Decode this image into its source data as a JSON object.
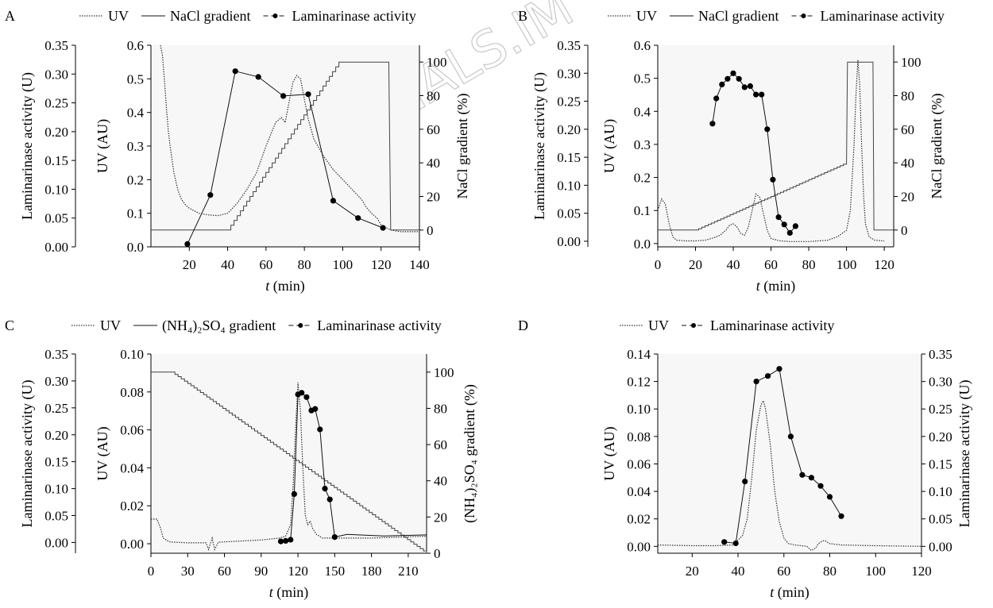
{
  "watermark": "JOURNALS.IM",
  "colors": {
    "ink": "#000000",
    "plot_background": "#f7f7f7",
    "watermark": "#c8c8c8"
  },
  "chart_data": [
    {
      "panel": "A",
      "type": "line",
      "legend": {
        "placement": "top",
        "entries": [
          "UV",
          "NaCl gradient",
          "Laminarinase activity"
        ]
      },
      "xlabel_var": "t",
      "xlabel_unit": "(min)",
      "xlim": [
        0,
        140
      ],
      "xticks": [
        "20",
        "40",
        "60",
        "80",
        "100",
        "120",
        "140"
      ],
      "left2": {
        "title": "Laminarinase activity (U)",
        "range": [
          0,
          0.35
        ],
        "ticks": [
          "0.00",
          "0.05",
          "0.10",
          "0.15",
          "0.20",
          "0.25",
          "0.30",
          "0.35"
        ]
      },
      "left1": {
        "title": "UV (AU)",
        "range": [
          0,
          0.6
        ],
        "ticks": [
          "0.0",
          "0.1",
          "0.2",
          "0.3",
          "0.4",
          "0.5",
          "0.6"
        ]
      },
      "right": {
        "title": "NaCl gradient (%)",
        "range": [
          -10,
          110
        ],
        "ticks": [
          "0",
          "20",
          "40",
          "60",
          "80",
          "100"
        ]
      },
      "uv": {
        "x": [
          5,
          6,
          7,
          8,
          9,
          10,
          12,
          14,
          16,
          18,
          20,
          25,
          30,
          35,
          40,
          45,
          50,
          55,
          60,
          65,
          68,
          70,
          72,
          74,
          76,
          78,
          80,
          82,
          85,
          88,
          90,
          95,
          100,
          105,
          110,
          112,
          115,
          118,
          120,
          125,
          130,
          135,
          140
        ],
        "y": [
          0.6,
          0.57,
          0.5,
          0.42,
          0.35,
          0.3,
          0.22,
          0.17,
          0.14,
          0.125,
          0.115,
          0.1,
          0.095,
          0.093,
          0.1,
          0.13,
          0.17,
          0.22,
          0.3,
          0.37,
          0.385,
          0.37,
          0.43,
          0.49,
          0.51,
          0.5,
          0.44,
          0.38,
          0.32,
          0.29,
          0.27,
          0.23,
          0.2,
          0.17,
          0.14,
          0.12,
          0.1,
          0.085,
          0.065,
          0.05,
          0.045,
          0.045,
          0.045
        ]
      },
      "gradient": {
        "x": [
          0,
          40,
          98,
          124,
          125,
          140
        ],
        "y": [
          0,
          0,
          100,
          100,
          0,
          0
        ]
      },
      "activity": {
        "x": [
          19,
          31,
          44,
          56,
          69,
          82,
          95,
          108,
          121
        ],
        "y": [
          0.005,
          0.09,
          0.305,
          0.295,
          0.262,
          0.265,
          0.08,
          0.05,
          0.033
        ]
      }
    },
    {
      "panel": "B",
      "type": "line",
      "legend": {
        "placement": "top",
        "entries": [
          "UV",
          "NaCl gradient",
          "Laminarinase activity"
        ]
      },
      "xlabel_var": "t",
      "xlabel_unit": "(min)",
      "xlim": [
        0,
        125
      ],
      "xticks": [
        "0",
        "20",
        "40",
        "60",
        "80",
        "100",
        "120"
      ],
      "left2": {
        "title": "Laminarinase activity (U)",
        "range": [
          -0.01,
          0.35
        ],
        "ticks": [
          "0.00",
          "0.05",
          "0.10",
          "0.15",
          "0.20",
          "0.25",
          "0.30",
          "0.35"
        ]
      },
      "left1": {
        "title": "UV (AU)",
        "range": [
          -0.01,
          0.6
        ],
        "ticks": [
          "0.0",
          "0.1",
          "0.2",
          "0.3",
          "0.4",
          "0.5",
          "0.6"
        ]
      },
      "right": {
        "title": "NaCl gradient (%)",
        "range": [
          -10,
          110
        ],
        "ticks": [
          "0",
          "20",
          "40",
          "60",
          "80",
          "100"
        ]
      },
      "uv": {
        "x": [
          0,
          2,
          4,
          6,
          8,
          10,
          15,
          20,
          25,
          30,
          33,
          36,
          38,
          40,
          42,
          44,
          46,
          48,
          50,
          52,
          54,
          56,
          58,
          60,
          65,
          70,
          80,
          90,
          95,
          100,
          102,
          104,
          105,
          106,
          107,
          108,
          109,
          110,
          112,
          115,
          120
        ],
        "y": [
          0.1,
          0.135,
          0.12,
          0.06,
          0.02,
          0.01,
          0.008,
          0.008,
          0.01,
          0.018,
          0.025,
          0.04,
          0.055,
          0.06,
          0.05,
          0.03,
          0.025,
          0.05,
          0.1,
          0.15,
          0.14,
          0.09,
          0.04,
          0.015,
          0.008,
          0.006,
          0.006,
          0.01,
          0.02,
          0.04,
          0.1,
          0.3,
          0.45,
          0.555,
          0.48,
          0.3,
          0.15,
          0.06,
          0.02,
          0.01,
          0.008
        ]
      },
      "gradient": {
        "x": [
          0,
          20,
          100,
          100.5,
          114,
          114.5,
          125
        ],
        "y": [
          0,
          0,
          40,
          100,
          100,
          0,
          0
        ]
      },
      "activity": {
        "x": [
          29,
          31,
          34,
          37,
          40,
          43,
          46,
          49,
          52,
          55,
          58,
          61,
          64,
          67,
          70,
          73
        ],
        "y": [
          0.21,
          0.255,
          0.28,
          0.29,
          0.3,
          0.29,
          0.275,
          0.277,
          0.262,
          0.262,
          0.2,
          0.11,
          0.043,
          0.03,
          0.015,
          0.027
        ]
      }
    },
    {
      "panel": "C",
      "type": "line",
      "legend": {
        "placement": "top",
        "entries": [
          "UV",
          "(NH₄)₂SO₄ gradient",
          "Laminarinase activity"
        ]
      },
      "xlabel_var": "t",
      "xlabel_unit": "(min)",
      "xlim": [
        0,
        225
      ],
      "xticks": [
        "0",
        "30",
        "60",
        "90",
        "120",
        "150",
        "180",
        "210"
      ],
      "left2": {
        "title": "Laminarinase activity (U)",
        "range": [
          -0.02,
          0.35
        ],
        "ticks": [
          "0.00",
          "0.05",
          "0.10",
          "0.15",
          "0.20",
          "0.25",
          "0.30",
          "0.35"
        ]
      },
      "left1": {
        "title": "UV (AU)",
        "range": [
          -0.005,
          0.1
        ],
        "ticks": [
          "0.00",
          "0.02",
          "0.04",
          "0.06",
          "0.08",
          "0.10"
        ]
      },
      "right": {
        "title": "(NH₄)₂SO₄ gradient (%)",
        "range": [
          0,
          110
        ],
        "ticks": [
          "0",
          "20",
          "40",
          "60",
          "80",
          "100"
        ]
      },
      "uv": {
        "x": [
          0,
          5,
          8,
          10,
          15,
          30,
          45,
          47,
          50,
          52,
          55,
          60,
          90,
          105,
          110,
          114,
          116,
          118,
          120,
          122,
          124,
          126,
          128,
          130,
          132,
          135,
          140,
          150,
          180,
          225
        ],
        "y": [
          0.013,
          0.013,
          0.008,
          0.003,
          0.001,
          0.0005,
          0.0005,
          -0.003,
          0.003,
          -0.003,
          0.0008,
          0.001,
          0.002,
          0.003,
          0.004,
          0.01,
          0.03,
          0.06,
          0.085,
          0.07,
          0.04,
          0.015,
          0.01,
          0.012,
          0.008,
          0.005,
          0.003,
          0.003,
          0.003,
          0.004
        ]
      },
      "gradient": {
        "x": [
          0,
          17,
          225
        ],
        "y": [
          100,
          100,
          0
        ]
      },
      "activity": {
        "x": [
          106,
          110,
          114,
          117,
          120,
          123,
          127,
          131,
          134,
          138,
          142,
          146,
          150
        ],
        "y": [
          0.002,
          0.003,
          0.005,
          0.09,
          0.275,
          0.278,
          0.27,
          0.245,
          0.248,
          0.21,
          0.1,
          0.08,
          0.01
        ]
      },
      "activity_tail": {
        "x": [
          150,
          160,
          190,
          225
        ],
        "y": [
          0.01,
          0.015,
          0.012,
          0.014
        ]
      }
    },
    {
      "panel": "D",
      "type": "line",
      "legend": {
        "placement": "top",
        "entries": [
          "UV",
          "Laminarinase activity"
        ]
      },
      "xlabel_var": "t",
      "xlabel_unit": "(min)",
      "xlim": [
        5,
        120
      ],
      "xticks": [
        "20",
        "40",
        "60",
        "80",
        "100",
        "120"
      ],
      "left1": {
        "title": "UV (AU)",
        "range": [
          -0.005,
          0.14
        ],
        "ticks": [
          "0.00",
          "0.02",
          "0.04",
          "0.06",
          "0.08",
          "0.10",
          "0.12",
          "0.14"
        ]
      },
      "right": {
        "title": "Laminarinase activity (U)",
        "range": [
          -0.0125,
          0.35
        ],
        "ticks": [
          "0.00",
          "0.05",
          "0.10",
          "0.15",
          "0.20",
          "0.25",
          "0.30",
          "0.35"
        ]
      },
      "uv": {
        "x": [
          5,
          20,
          30,
          38,
          42,
          44,
          46,
          48,
          50,
          51,
          52,
          54,
          56,
          58,
          60,
          62,
          65,
          70,
          72,
          74,
          75,
          77,
          78,
          80,
          85,
          100,
          120
        ],
        "y": [
          0.001,
          0.0005,
          0.0005,
          0.001,
          0.008,
          0.02,
          0.05,
          0.085,
          0.103,
          0.106,
          0.1,
          0.075,
          0.04,
          0.018,
          0.006,
          0.002,
          0.001,
          0.0,
          -0.003,
          -0.001,
          0.002,
          0.004,
          0.004,
          0.002,
          0.001,
          0.0005,
          0.0
        ]
      },
      "activity": {
        "x": [
          34,
          39,
          43,
          48,
          53,
          58,
          63,
          68,
          72,
          76,
          80,
          85
        ],
        "y": [
          0.008,
          0.0055,
          0.118,
          0.3,
          0.31,
          0.323,
          0.2,
          0.13,
          0.125,
          0.11,
          0.09,
          0.055
        ]
      }
    }
  ]
}
